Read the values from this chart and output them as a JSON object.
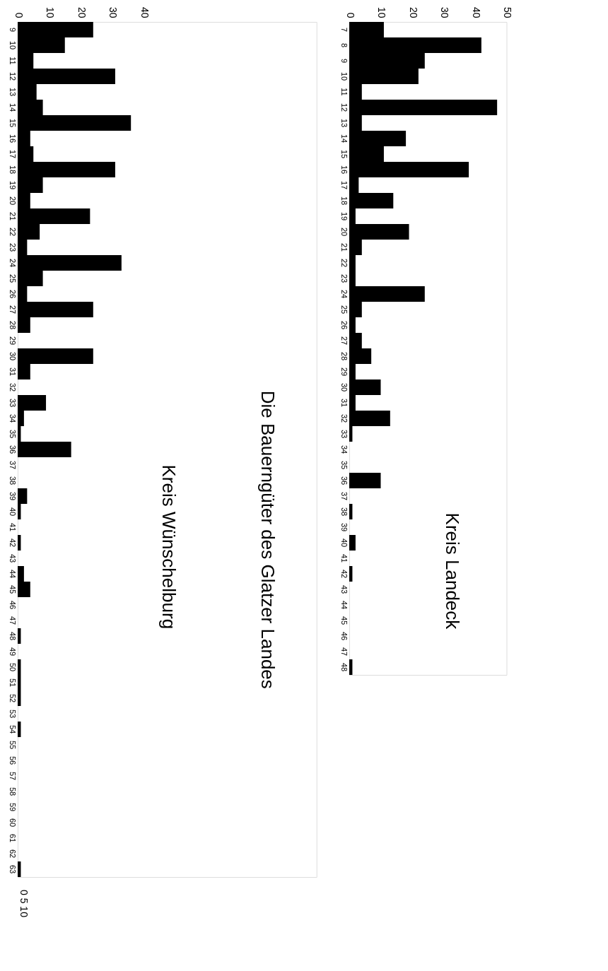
{
  "chart_data": [
    {
      "type": "bar",
      "orientation": "horizontal",
      "title": "Die Bauerngüter des Glatzer Landes",
      "subtitle": "Kreis Wünschelburg",
      "categories": [
        "9",
        "10",
        "11",
        "12",
        "13",
        "14",
        "15",
        "16",
        "17",
        "18",
        "19",
        "20",
        "21",
        "22",
        "23",
        "24",
        "25",
        "26",
        "27",
        "28",
        "29",
        "30",
        "31",
        "32",
        "33",
        "34",
        "35",
        "36",
        "37",
        "38",
        "39",
        "40",
        "41",
        "42",
        "43",
        "44",
        "45",
        "46",
        "47",
        "48",
        "49",
        "50",
        "51",
        "52",
        "53",
        "54",
        "55",
        "56",
        "57",
        "58",
        "59",
        "60",
        "61",
        "62",
        "63"
      ],
      "values": [
        24,
        15,
        5,
        31,
        6,
        8,
        36,
        4,
        5,
        31,
        8,
        4,
        23,
        7,
        3,
        33,
        8,
        3,
        24,
        4,
        0,
        24,
        4,
        0,
        9,
        2,
        1,
        17,
        0,
        0,
        3,
        1,
        0,
        1,
        0,
        2,
        4,
        0,
        0,
        1,
        0,
        1,
        1,
        1,
        0,
        1,
        0,
        0,
        0,
        0,
        0,
        0,
        0,
        0,
        1
      ],
      "color": "#000000",
      "xlim": [
        0,
        95
      ],
      "xticks": [
        0,
        10,
        20,
        30,
        40
      ],
      "grid": false,
      "annotations": [
        "0 5 10"
      ]
    },
    {
      "type": "bar",
      "orientation": "horizontal",
      "title": "Kreis Landeck",
      "categories": [
        "7",
        "8",
        "9",
        "10",
        "11",
        "12",
        "13",
        "14",
        "15",
        "16",
        "17",
        "18",
        "19",
        "20",
        "21",
        "22",
        "23",
        "24",
        "25",
        "26",
        "27",
        "28",
        "29",
        "30",
        "31",
        "32",
        "33",
        "34",
        "35",
        "36",
        "37",
        "38",
        "39",
        "40",
        "41",
        "42",
        "43",
        "44",
        "45",
        "46",
        "47",
        "48"
      ],
      "values": [
        11,
        42,
        24,
        22,
        4,
        47,
        4,
        18,
        11,
        38,
        3,
        14,
        2,
        19,
        4,
        2,
        2,
        24,
        4,
        2,
        4,
        7,
        2,
        10,
        2,
        13,
        1,
        0,
        0,
        10,
        0,
        1,
        0,
        2,
        0,
        1,
        0,
        0,
        0,
        0,
        0,
        1
      ],
      "color": "#000000",
      "xlim": [
        0,
        50
      ],
      "xticks": [
        0,
        10,
        20,
        30,
        40,
        50
      ],
      "grid": false
    }
  ]
}
